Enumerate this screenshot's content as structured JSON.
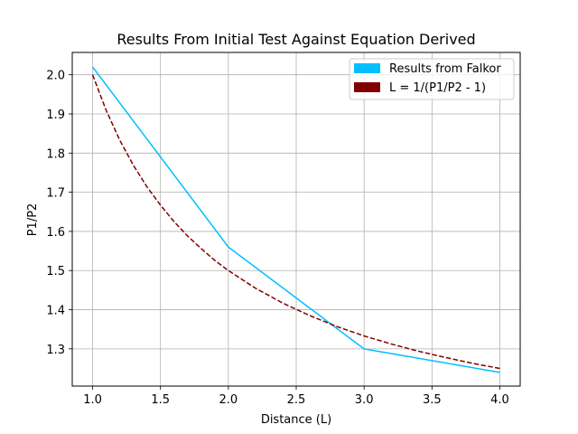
{
  "chart_data": {
    "type": "line",
    "title": "Results From Initial Test Against Equation Derived",
    "xlabel": "Distance (L)",
    "ylabel": "P1/P2",
    "xlim": [
      0.85,
      4.15
    ],
    "ylim": [
      1.205,
      2.057
    ],
    "xticks": [
      1.0,
      1.5,
      2.0,
      2.5,
      3.0,
      3.5,
      4.0
    ],
    "xtick_labels": [
      "1.0",
      "1.5",
      "2.0",
      "2.5",
      "3.0",
      "3.5",
      "4.0"
    ],
    "yticks": [
      1.3,
      1.4,
      1.5,
      1.6,
      1.7,
      1.8,
      1.9,
      2.0
    ],
    "ytick_labels": [
      "1.3",
      "1.4",
      "1.5",
      "1.6",
      "1.7",
      "1.8",
      "1.9",
      "2.0"
    ],
    "grid": true,
    "legend_position": "top-right",
    "series": [
      {
        "name": "Results from Falkor",
        "color": "#00bfff",
        "style": "solid",
        "x": [
          1.0,
          2.0,
          3.0,
          4.0
        ],
        "y": [
          2.02,
          1.56,
          1.3,
          1.24
        ]
      },
      {
        "name": "L = 1/(P1/P2 - 1)",
        "color": "#800000",
        "style": "dashed",
        "x": [
          1.0,
          1.1,
          1.2,
          1.3,
          1.4,
          1.5,
          1.6,
          1.7,
          1.8,
          1.9,
          2.0,
          2.2,
          2.4,
          2.6,
          2.8,
          3.0,
          3.2,
          3.4,
          3.6,
          3.8,
          4.0
        ],
        "y": [
          2.0,
          1.909,
          1.833,
          1.769,
          1.714,
          1.667,
          1.625,
          1.588,
          1.556,
          1.526,
          1.5,
          1.455,
          1.417,
          1.385,
          1.357,
          1.333,
          1.3125,
          1.294,
          1.278,
          1.263,
          1.25
        ]
      }
    ]
  }
}
